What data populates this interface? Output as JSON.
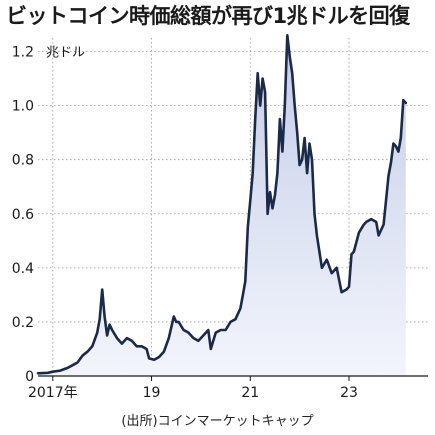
{
  "title": "ビットコイン時価総額が再び1兆ドルを回復",
  "source": "(出所)コインマーケットキャップ",
  "colors": {
    "line": "#1c2a4a",
    "area_top": "#c4cde8",
    "area_bottom": "#f3f5fc",
    "grid": "#9a9a9a",
    "text": "#1a1a1a"
  },
  "chart_data": {
    "type": "area",
    "title": "ビットコイン時価総額が再び1兆ドルを回復",
    "ylabel": "兆ドル",
    "ylim": [
      0,
      1.25
    ],
    "yticks": [
      0,
      0.2,
      0.4,
      0.6,
      0.8,
      1.0,
      1.2
    ],
    "ytick_labels": [
      "0",
      "0.2",
      "0.4",
      "0.6",
      "0.8",
      "1.0",
      "1.2"
    ],
    "xlim": [
      2016.7,
      2024.6
    ],
    "xticks": [
      2017,
      2019,
      2021,
      2023
    ],
    "xtick_labels": [
      "2017年",
      "19",
      "21",
      "23"
    ],
    "grid": true,
    "series": [
      {
        "x": [
          2016.7,
          2016.9,
          2017.0,
          2017.15,
          2017.3,
          2017.4,
          2017.5,
          2017.6,
          2017.7,
          2017.8,
          2017.9,
          2017.95,
          2018.0,
          2018.05,
          2018.1,
          2018.15,
          2018.2,
          2018.3,
          2018.4,
          2018.5,
          2018.6,
          2018.7,
          2018.8,
          2018.9,
          2018.95,
          2019.05,
          2019.15,
          2019.25,
          2019.35,
          2019.45,
          2019.5,
          2019.55,
          2019.65,
          2019.75,
          2019.85,
          2019.95,
          2020.05,
          2020.15,
          2020.2,
          2020.3,
          2020.4,
          2020.5,
          2020.6,
          2020.7,
          2020.8,
          2020.85,
          2020.9,
          2020.95,
          2021.0,
          2021.05,
          2021.1,
          2021.15,
          2021.2,
          2021.25,
          2021.3,
          2021.35,
          2021.4,
          2021.45,
          2021.5,
          2021.55,
          2021.6,
          2021.65,
          2021.7,
          2021.75,
          2021.8,
          2021.85,
          2021.9,
          2021.95,
          2022.0,
          2022.05,
          2022.1,
          2022.15,
          2022.2,
          2022.25,
          2022.3,
          2022.35,
          2022.45,
          2022.55,
          2022.65,
          2022.75,
          2022.85,
          2022.95,
          2023.0,
          2023.05,
          2023.1,
          2023.2,
          2023.3,
          2023.35,
          2023.45,
          2023.55,
          2023.6,
          2023.7,
          2023.8,
          2023.85,
          2023.9,
          2023.95,
          2024.0,
          2024.05,
          2024.1,
          2024.15
        ],
        "y": [
          0.01,
          0.012,
          0.016,
          0.02,
          0.03,
          0.04,
          0.05,
          0.075,
          0.09,
          0.11,
          0.16,
          0.21,
          0.32,
          0.22,
          0.15,
          0.19,
          0.17,
          0.14,
          0.12,
          0.14,
          0.13,
          0.11,
          0.11,
          0.1,
          0.065,
          0.06,
          0.07,
          0.09,
          0.14,
          0.22,
          0.2,
          0.2,
          0.17,
          0.16,
          0.14,
          0.13,
          0.15,
          0.17,
          0.1,
          0.16,
          0.17,
          0.17,
          0.2,
          0.21,
          0.25,
          0.3,
          0.35,
          0.55,
          0.65,
          0.75,
          0.95,
          1.12,
          1.0,
          1.1,
          1.05,
          0.6,
          0.68,
          0.62,
          0.67,
          0.75,
          0.95,
          0.83,
          1.0,
          1.26,
          1.18,
          1.12,
          1.0,
          0.9,
          0.78,
          0.8,
          0.88,
          0.75,
          0.86,
          0.8,
          0.6,
          0.52,
          0.4,
          0.43,
          0.38,
          0.4,
          0.31,
          0.32,
          0.33,
          0.45,
          0.46,
          0.53,
          0.56,
          0.57,
          0.58,
          0.57,
          0.52,
          0.56,
          0.74,
          0.79,
          0.86,
          0.85,
          0.83,
          0.88,
          1.02,
          1.01
        ]
      }
    ]
  }
}
